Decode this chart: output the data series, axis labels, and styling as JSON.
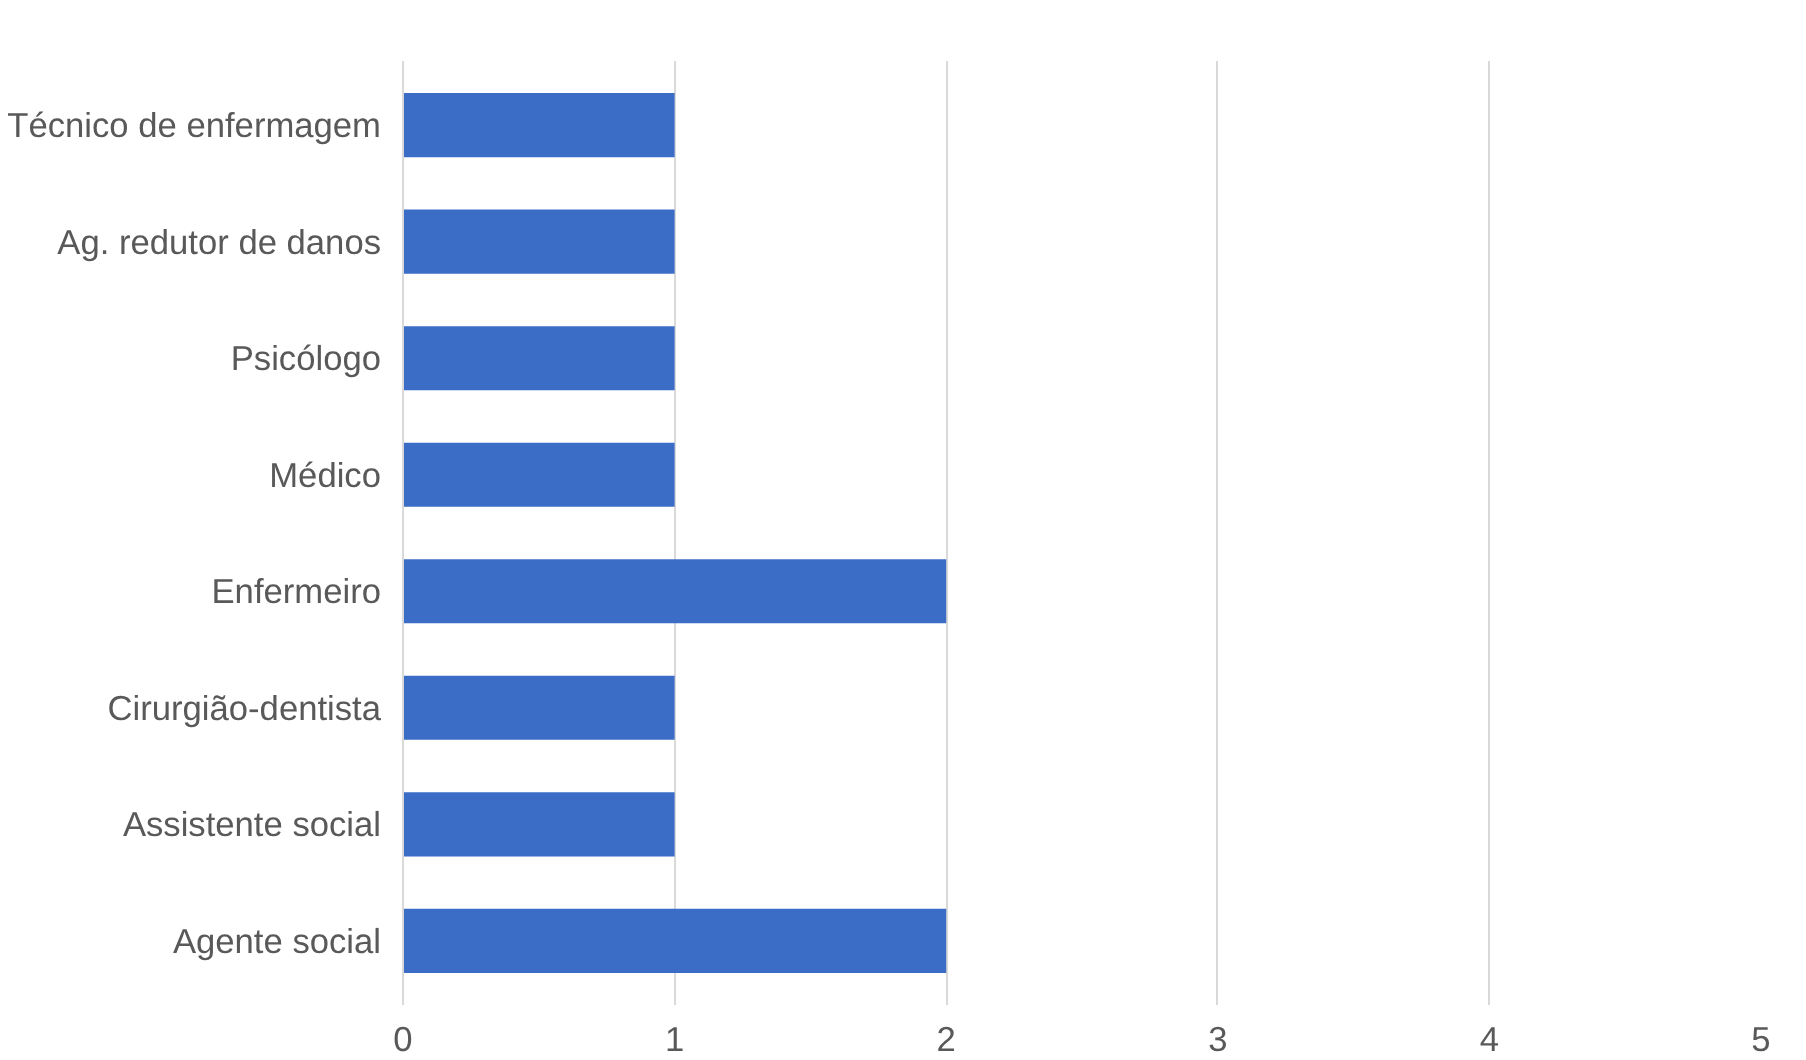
{
  "chart_data": {
    "type": "bar",
    "orientation": "horizontal",
    "categories": [
      "Técnico de enfermagem",
      "Ag. redutor de danos",
      "Psicólogo",
      "Médico",
      "Enfermeiro",
      "Cirurgião-dentista",
      "Assistente social",
      "Agente social"
    ],
    "values": [
      1,
      1,
      1,
      1,
      2,
      1,
      1,
      2
    ],
    "color": "#3b6cc6",
    "xlim": [
      0,
      5
    ],
    "xticks": [
      0,
      1,
      2,
      3,
      4,
      5
    ],
    "grid": "x"
  }
}
